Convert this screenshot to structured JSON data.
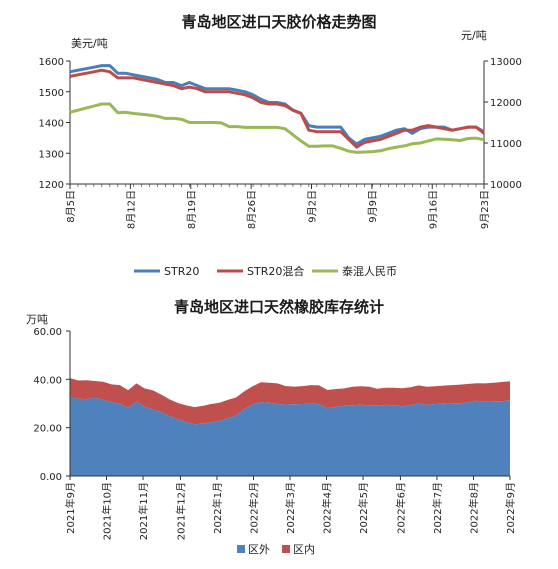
{
  "chart_data": [
    {
      "type": "line",
      "title": "青岛地区进口天胶价格走势图",
      "y_unit_left": "美元/吨",
      "y_unit_right": "元/吨",
      "ylim_left": [
        1200,
        1600
      ],
      "yticks_left": [
        "1200",
        "1300",
        "1400",
        "1500",
        "1600"
      ],
      "ylim_right": [
        10000,
        13000
      ],
      "yticks_right": [
        "10000",
        "11000",
        "12000",
        "13000"
      ],
      "xlim": [
        0,
        48
      ],
      "x_ticks": [
        {
          "label": "8月5日",
          "x": 0
        },
        {
          "label": "8月12日",
          "x": 7
        },
        {
          "label": "8月19日",
          "x": 14
        },
        {
          "label": "8月26日",
          "x": 21
        },
        {
          "label": "9月2日",
          "x": 28
        },
        {
          "label": "9月9日",
          "x": 35
        },
        {
          "label": "9月16日",
          "x": 42
        },
        {
          "label": "9月23日",
          "x": 48
        }
      ],
      "grid": false,
      "legend": "bottom",
      "series": [
        {
          "name": "STR20",
          "axis": "left",
          "color": "#4a7ebb",
          "points": [
            [
              0,
              1565
            ],
            [
              1,
              1570
            ],
            [
              2,
              1575
            ],
            [
              3,
              1580
            ],
            [
              4,
              1585
            ],
            [
              5,
              1585
            ],
            [
              6,
              1560
            ],
            [
              7,
              1560
            ],
            [
              8,
              1555
            ],
            [
              9,
              1550
            ],
            [
              10,
              1545
            ],
            [
              11,
              1540
            ],
            [
              12,
              1530
            ],
            [
              13,
              1530
            ],
            [
              14,
              1520
            ],
            [
              15,
              1530
            ],
            [
              16,
              1520
            ],
            [
              17,
              1510
            ],
            [
              18,
              1510
            ],
            [
              19,
              1510
            ],
            [
              20,
              1510
            ],
            [
              21,
              1505
            ],
            [
              22,
              1500
            ],
            [
              23,
              1490
            ],
            [
              24,
              1475
            ],
            [
              25,
              1465
            ],
            [
              26,
              1465
            ],
            [
              27,
              1460
            ],
            [
              28,
              1440
            ],
            [
              29,
              1430
            ],
            [
              30,
              1390
            ],
            [
              31,
              1385
            ],
            [
              32,
              1385
            ],
            [
              33,
              1385
            ],
            [
              34,
              1385
            ],
            [
              35,
              1350
            ],
            [
              36,
              1330
            ],
            [
              37,
              1345
            ],
            [
              38,
              1350
            ],
            [
              39,
              1355
            ],
            [
              40,
              1365
            ],
            [
              41,
              1375
            ],
            [
              42,
              1380
            ],
            [
              43,
              1365
            ],
            [
              44,
              1380
            ],
            [
              45,
              1385
            ],
            [
              46,
              1385
            ],
            [
              47,
              1385
            ],
            [
              48,
              1375
            ],
            [
              49,
              1380
            ],
            [
              50,
              1385
            ],
            [
              51,
              1385
            ],
            [
              52,
              1370
            ]
          ]
        },
        {
          "name": "STR20混合",
          "axis": "left",
          "color": "#be4b48",
          "points": [
            [
              0,
              1550
            ],
            [
              1,
              1555
            ],
            [
              2,
              1560
            ],
            [
              3,
              1565
            ],
            [
              4,
              1570
            ],
            [
              5,
              1565
            ],
            [
              6,
              1545
            ],
            [
              7,
              1545
            ],
            [
              8,
              1545
            ],
            [
              9,
              1540
            ],
            [
              10,
              1535
            ],
            [
              11,
              1530
            ],
            [
              12,
              1525
            ],
            [
              13,
              1520
            ],
            [
              14,
              1510
            ],
            [
              15,
              1515
            ],
            [
              16,
              1510
            ],
            [
              17,
              1500
            ],
            [
              18,
              1500
            ],
            [
              19,
              1500
            ],
            [
              20,
              1500
            ],
            [
              21,
              1495
            ],
            [
              22,
              1490
            ],
            [
              23,
              1480
            ],
            [
              24,
              1465
            ],
            [
              25,
              1460
            ],
            [
              26,
              1460
            ],
            [
              27,
              1455
            ],
            [
              28,
              1440
            ],
            [
              29,
              1430
            ],
            [
              30,
              1375
            ],
            [
              31,
              1370
            ],
            [
              32,
              1370
            ],
            [
              33,
              1370
            ],
            [
              34,
              1370
            ],
            [
              35,
              1345
            ],
            [
              36,
              1320
            ],
            [
              37,
              1335
            ],
            [
              38,
              1340
            ],
            [
              39,
              1345
            ],
            [
              40,
              1355
            ],
            [
              41,
              1365
            ],
            [
              42,
              1375
            ],
            [
              43,
              1375
            ],
            [
              44,
              1385
            ],
            [
              45,
              1390
            ],
            [
              46,
              1385
            ],
            [
              47,
              1380
            ],
            [
              48,
              1375
            ],
            [
              49,
              1380
            ],
            [
              50,
              1385
            ],
            [
              51,
              1385
            ],
            [
              52,
              1365
            ]
          ]
        },
        {
          "name": "泰混人民币",
          "axis": "right",
          "color": "#98b954",
          "points": [
            [
              0,
              11750
            ],
            [
              1,
              11800
            ],
            [
              2,
              11850
            ],
            [
              3,
              11900
            ],
            [
              4,
              11950
            ],
            [
              5,
              11950
            ],
            [
              6,
              11740
            ],
            [
              7,
              11750
            ],
            [
              8,
              11720
            ],
            [
              9,
              11700
            ],
            [
              10,
              11680
            ],
            [
              11,
              11650
            ],
            [
              12,
              11600
            ],
            [
              13,
              11600
            ],
            [
              14,
              11580
            ],
            [
              15,
              11500
            ],
            [
              16,
              11500
            ],
            [
              17,
              11500
            ],
            [
              18,
              11500
            ],
            [
              19,
              11490
            ],
            [
              20,
              11400
            ],
            [
              21,
              11400
            ],
            [
              22,
              11380
            ],
            [
              23,
              11380
            ],
            [
              24,
              11380
            ],
            [
              25,
              11380
            ],
            [
              26,
              11380
            ],
            [
              27,
              11350
            ],
            [
              28,
              11200
            ],
            [
              29,
              11050
            ],
            [
              30,
              10920
            ],
            [
              31,
              10920
            ],
            [
              32,
              10930
            ],
            [
              33,
              10930
            ],
            [
              34,
              10870
            ],
            [
              35,
              10800
            ],
            [
              36,
              10770
            ],
            [
              37,
              10780
            ],
            [
              38,
              10790
            ],
            [
              39,
              10810
            ],
            [
              40,
              10860
            ],
            [
              41,
              10900
            ],
            [
              42,
              10930
            ],
            [
              43,
              10980
            ],
            [
              44,
              11000
            ],
            [
              45,
              11050
            ],
            [
              46,
              11100
            ],
            [
              47,
              11090
            ],
            [
              48,
              11080
            ],
            [
              49,
              11060
            ],
            [
              50,
              11110
            ],
            [
              51,
              11120
            ],
            [
              52,
              11080
            ]
          ]
        }
      ]
    },
    {
      "type": "area",
      "stacked": true,
      "title": "青岛地区进口天然橡胶库存统计",
      "y_unit": "万吨",
      "ylim": [
        0,
        60
      ],
      "yticks": [
        "0.00",
        "20.00",
        "40.00",
        "60.00"
      ],
      "xlim": [
        0,
        53
      ],
      "x_ticks": [
        {
          "label": "2021年9月",
          "x": 0
        },
        {
          "label": "2021年10月",
          "x": 4.4
        },
        {
          "label": "2021年11月",
          "x": 8.8
        },
        {
          "label": "2021年12月",
          "x": 13.3
        },
        {
          "label": "2022年1月",
          "x": 17.7
        },
        {
          "label": "2022年2月",
          "x": 22.1
        },
        {
          "label": "2022年3月",
          "x": 26.5
        },
        {
          "label": "2022年4月",
          "x": 30.9
        },
        {
          "label": "2022年5月",
          "x": 35.3
        },
        {
          "label": "2022年6月",
          "x": 39.8
        },
        {
          "label": "2022年7月",
          "x": 44.2
        },
        {
          "label": "2022年8月",
          "x": 48.6
        },
        {
          "label": "2022年9月",
          "x": 53
        }
      ],
      "grid": false,
      "legend": "bottom",
      "x": [
        0,
        1,
        2,
        3,
        4,
        5,
        6,
        7,
        8,
        9,
        10,
        11,
        12,
        13,
        14,
        15,
        16,
        17,
        18,
        19,
        20,
        21,
        22,
        23,
        24,
        25,
        26,
        27,
        28,
        29,
        30,
        31,
        32,
        33,
        34,
        35,
        36,
        37,
        38,
        39,
        40,
        41,
        42,
        43,
        44,
        45,
        46,
        47,
        48,
        49,
        50,
        51,
        52,
        53
      ],
      "series": [
        {
          "name": "区外",
          "color": "#4f81bd",
          "values": [
            32.5,
            32.0,
            31.8,
            32.3,
            31.5,
            30.6,
            29.9,
            28.2,
            30.8,
            28.6,
            27.6,
            26.3,
            24.8,
            23.4,
            22.3,
            21.4,
            21.7,
            22.3,
            22.7,
            24.0,
            25.0,
            27.7,
            29.7,
            30.5,
            30.3,
            29.8,
            29.6,
            29.7,
            29.8,
            30.0,
            29.7,
            28.0,
            28.6,
            29.0,
            29.3,
            29.5,
            29.1,
            29.1,
            29.4,
            29.3,
            28.9,
            29.3,
            30.0,
            29.4,
            29.8,
            29.9,
            30.1,
            30.1,
            30.6,
            31.1,
            30.7,
            30.9,
            31.0,
            31.2
          ]
        },
        {
          "name": "区内",
          "color": "#c0504d",
          "values": [
            8.0,
            7.5,
            7.8,
            7.0,
            7.5,
            7.3,
            7.7,
            7.3,
            7.5,
            7.6,
            7.8,
            7.4,
            6.9,
            6.8,
            6.9,
            7.1,
            7.3,
            7.5,
            7.6,
            7.5,
            7.5,
            7.4,
            7.4,
            8.3,
            8.3,
            8.5,
            7.6,
            7.3,
            7.4,
            7.6,
            7.8,
            7.6,
            7.4,
            7.2,
            7.6,
            7.6,
            7.9,
            7.0,
            7.1,
            7.2,
            7.4,
            7.4,
            7.5,
            7.5,
            7.3,
            7.5,
            7.5,
            7.7,
            7.5,
            7.3,
            7.6,
            7.7,
            7.9,
            8.0
          ]
        }
      ]
    }
  ]
}
